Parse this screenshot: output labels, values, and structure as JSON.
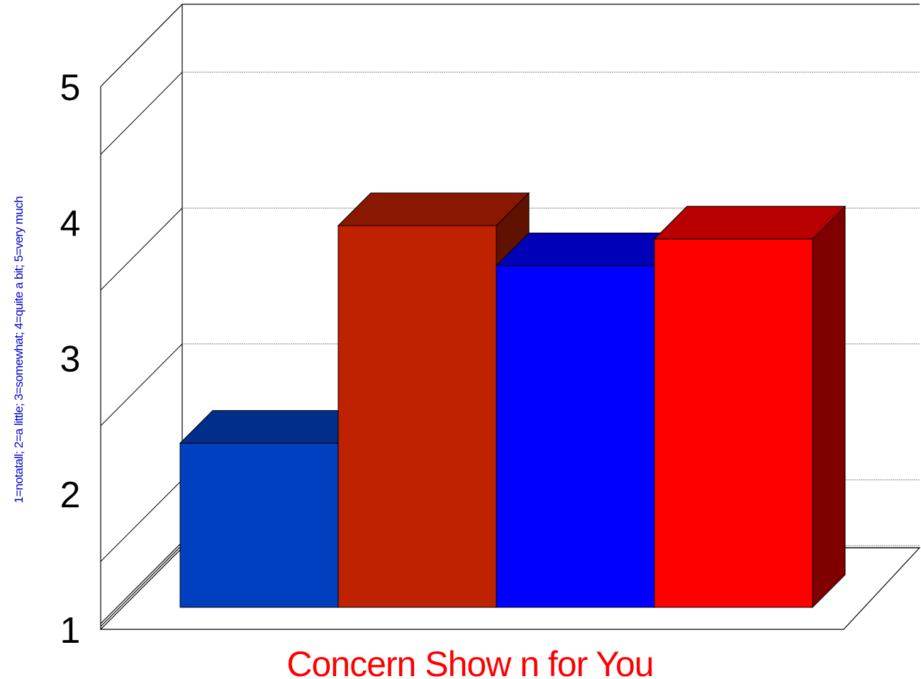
{
  "chart_data": {
    "type": "bar",
    "categories": [
      "Concern Show n for You"
    ],
    "series": [
      {
        "values": [
          2.23
        ],
        "color": "#0040C0"
      },
      {
        "values": [
          3.86
        ],
        "color": "#BF2200"
      },
      {
        "values": [
          3.56
        ],
        "color": "#0000FF"
      },
      {
        "values": [
          3.76
        ],
        "color": "#FF0000"
      }
    ],
    "xlabel": "Concern Show n for You",
    "ylabel": "1=notatall; 2=a little; 3=somewhat; 4=quite a bit; 5=very much",
    "ylim": [
      1,
      5
    ],
    "yticks": [
      "1",
      "2",
      "3",
      "4",
      "5"
    ],
    "grid": true,
    "legend": "none",
    "style": "3d",
    "colors": {
      "xlabel": "#FF0000",
      "ylabel": "#0000CC",
      "gridline": "#808080",
      "axis": "#000000"
    }
  }
}
